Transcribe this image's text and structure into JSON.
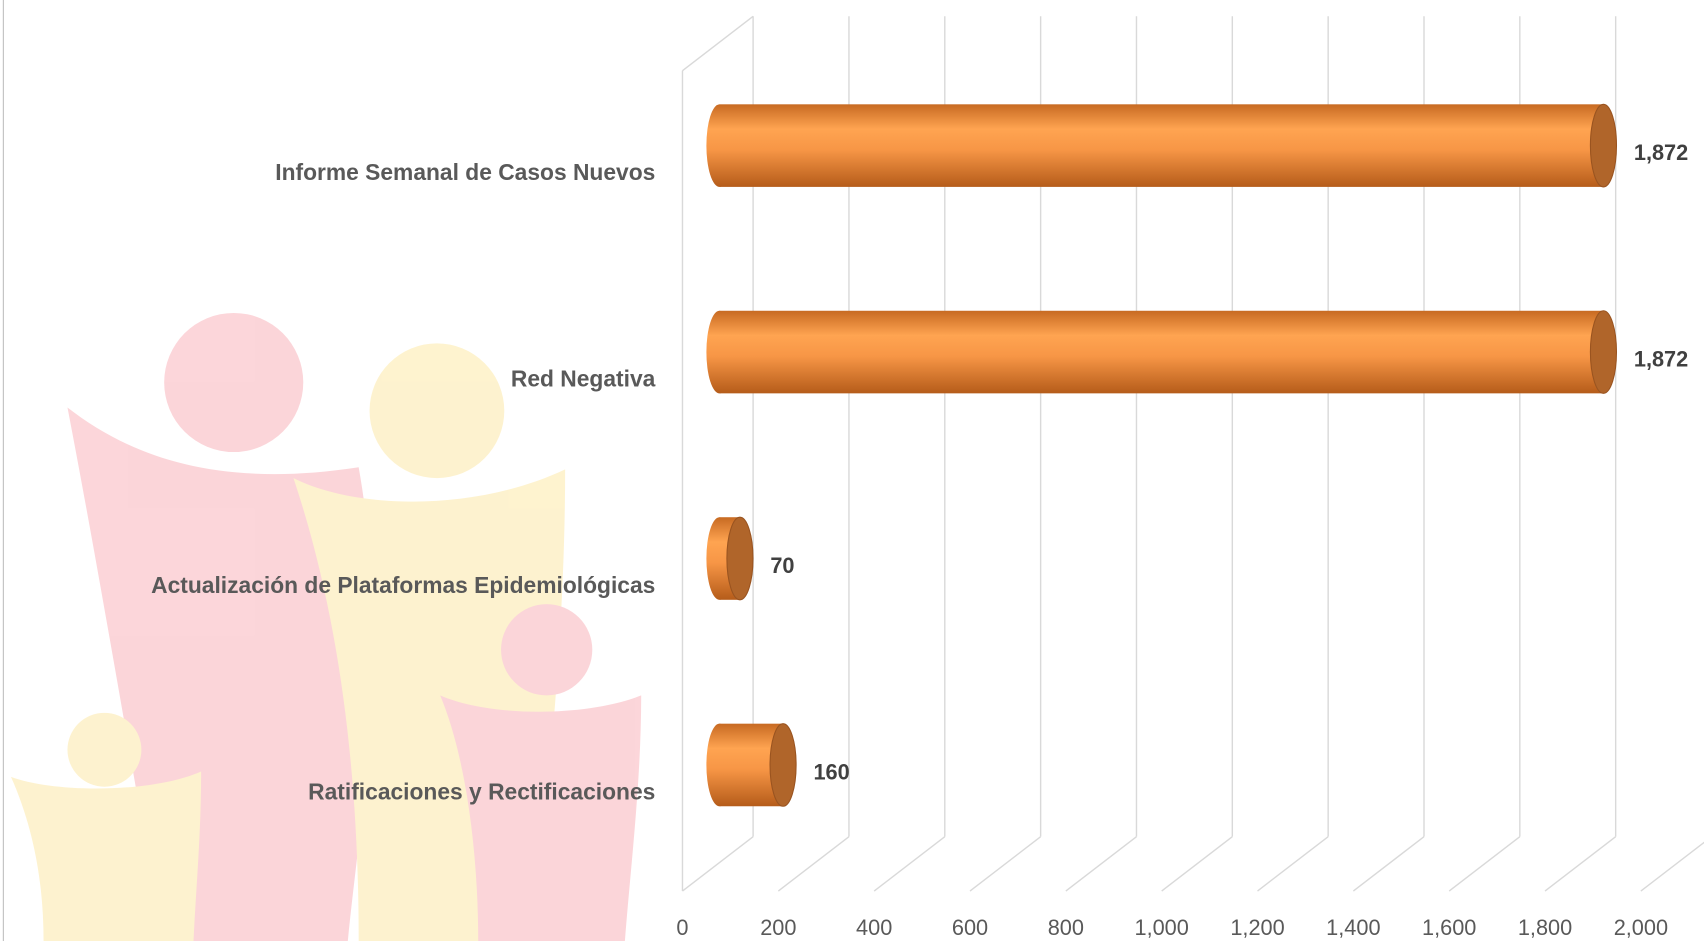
{
  "chart_data": {
    "type": "bar3d_horizontal",
    "categories": [
      "Informe Semanal de Casos Nuevos",
      "Red Negativa",
      "Actualización de Plataformas Epidemiológicas",
      "Ratificaciones y Rectificaciones"
    ],
    "values": [
      1872,
      1872,
      70,
      160
    ],
    "value_labels": [
      "1,872",
      "1,872",
      "70",
      "160"
    ],
    "color": "#f79646",
    "xlim": [
      0,
      2000
    ],
    "xticks": [
      0,
      200,
      400,
      600,
      800,
      {
        "value": 1000,
        "label": "1,000"
      },
      {
        "value": 1200,
        "label": "1,200"
      },
      {
        "value": 1400,
        "label": "1,400"
      },
      {
        "value": 1600,
        "label": "1,600"
      },
      {
        "value": 1800,
        "label": "1,800"
      },
      {
        "value": 2000,
        "label": "2,000"
      }
    ],
    "grid": true
  }
}
